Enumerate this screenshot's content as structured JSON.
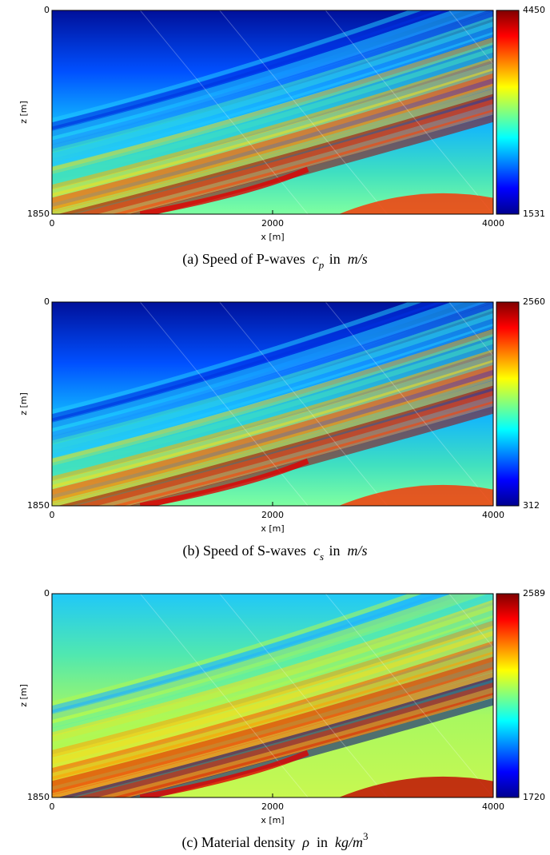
{
  "chart_data": [
    {
      "type": "heatmap",
      "caption": [
        {
          "text": "(a) Speed of P-waves",
          "style": "plain"
        },
        {
          "text": "c",
          "style": "italic"
        },
        {
          "text": "p",
          "style": "sub"
        },
        {
          "text": "in",
          "style": "plain"
        },
        {
          "text": "m/s",
          "style": "italic"
        }
      ],
      "xlabel": "x [m]",
      "ylabel": "z [m]",
      "xlim": [
        0,
        4000
      ],
      "xticks": [
        0,
        2000,
        4000
      ],
      "ylim": [
        1850,
        0
      ],
      "yticks": [
        0,
        1850
      ],
      "colorbar_lim": [
        1531,
        4450
      ],
      "colorbar_ticks": [
        1531,
        4450
      ],
      "colormap": "jet"
    },
    {
      "type": "heatmap",
      "caption": [
        {
          "text": "(b) Speed of S-waves",
          "style": "plain"
        },
        {
          "text": "c",
          "style": "italic"
        },
        {
          "text": "s",
          "style": "sub"
        },
        {
          "text": "in",
          "style": "plain"
        },
        {
          "text": "m/s",
          "style": "italic"
        }
      ],
      "xlabel": "x [m]",
      "ylabel": "z [m]",
      "xlim": [
        0,
        4000
      ],
      "xticks": [
        0,
        2000,
        4000
      ],
      "ylim": [
        1850,
        0
      ],
      "yticks": [
        0,
        1850
      ],
      "colorbar_lim": [
        312,
        2560
      ],
      "colorbar_ticks": [
        312,
        2560
      ],
      "colormap": "jet"
    },
    {
      "type": "heatmap",
      "caption": [
        {
          "text": "(c) Material density",
          "style": "plain"
        },
        {
          "text": "ρ",
          "style": "italic"
        },
        {
          "text": "in",
          "style": "plain"
        },
        {
          "text": "kg/m",
          "style": "italic"
        },
        {
          "text": "3",
          "style": "sup"
        }
      ],
      "xlabel": "x [m]",
      "ylabel": "z [m]",
      "xlim": [
        0,
        4000
      ],
      "xticks": [
        0,
        2000,
        4000
      ],
      "ylim": [
        1850,
        0
      ],
      "yticks": [
        0,
        1850
      ],
      "colorbar_lim": [
        1720,
        2589
      ],
      "colorbar_ticks": [
        1720,
        2589
      ],
      "colormap": "jet"
    }
  ]
}
